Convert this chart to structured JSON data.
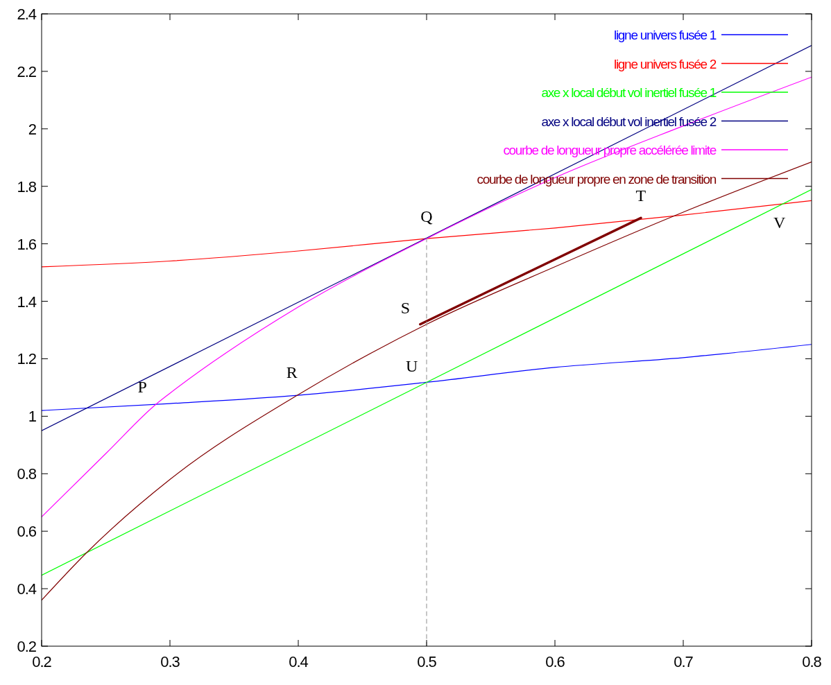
{
  "chart_data": {
    "type": "line",
    "xlim": [
      0.2,
      0.8
    ],
    "ylim": [
      0.2,
      2.4
    ],
    "xticks": [
      0.2,
      0.3,
      0.4,
      0.5,
      0.6,
      0.7,
      0.8
    ],
    "yticks": [
      0.2,
      0.4,
      0.6,
      0.8,
      1,
      1.2,
      1.4,
      1.6,
      1.8,
      2,
      2.2,
      2.4
    ],
    "grid": false,
    "legend": "top right",
    "series": [
      {
        "name": "ligne univers fusée 1",
        "color": "#0000ff",
        "x": [
          0.2,
          0.3,
          0.4,
          0.5,
          0.6,
          0.7,
          0.8
        ],
        "values": [
          1.02,
          1.044,
          1.073,
          1.118,
          1.17,
          1.204,
          1.25
        ]
      },
      {
        "name": "ligne univers fusée 2",
        "color": "#ff0000",
        "x": [
          0.2,
          0.3,
          0.4,
          0.5,
          0.6,
          0.7,
          0.8
        ],
        "values": [
          1.52,
          1.54,
          1.575,
          1.618,
          1.655,
          1.7,
          1.75
        ]
      },
      {
        "name": "axe x  local début vol inertiel fusée 1",
        "color": "#00ff00",
        "x": [
          0.2,
          0.8
        ],
        "values": [
          0.447,
          1.789
        ]
      },
      {
        "name": "axe x  local début vol inertiel fusée 2",
        "color": "#000080",
        "x": [
          0.2,
          0.8
        ],
        "values": [
          0.95,
          2.29
        ]
      },
      {
        "name": "courbe de longueur propre accélérée limite",
        "color": "#ff00ff",
        "x": [
          0.2,
          0.25,
          0.29,
          0.3,
          0.4,
          0.5,
          0.6,
          0.7,
          0.8
        ],
        "values": [
          0.65,
          0.87,
          1.045,
          1.08,
          1.38,
          1.618,
          1.83,
          2.01,
          2.18
        ]
      },
      {
        "name": "courbe de longueur propre en zone de transition",
        "color": "#800000",
        "x": [
          0.2,
          0.235,
          0.3,
          0.4,
          0.5,
          0.6,
          0.7,
          0.8
        ],
        "values": [
          0.36,
          0.525,
          0.78,
          1.075,
          1.32,
          1.52,
          1.71,
          1.885
        ]
      },
      {
        "color": "#800000",
        "x": [
          0.495,
          0.667
        ],
        "values": [
          1.32,
          1.69
        ]
      },
      {
        "color": "#a0a0a0",
        "line_style": "dashed",
        "x": [
          0.5,
          0.5
        ],
        "values": [
          0.2,
          1.618
        ]
      }
    ],
    "annotations": [
      {
        "text": "P",
        "x": 0.29,
        "y": 1.045
      },
      {
        "text": "Q",
        "x": 0.5,
        "y": 1.618
      },
      {
        "text": "R",
        "x": 0.395,
        "y": 1.075
      },
      {
        "text": "S",
        "x": 0.495,
        "y": 1.32
      },
      {
        "text": "T",
        "x": 0.667,
        "y": 1.69
      },
      {
        "text": "U",
        "x": 0.5,
        "y": 1.118
      },
      {
        "text": "V",
        "x": 0.775,
        "y": 1.74
      }
    ]
  }
}
